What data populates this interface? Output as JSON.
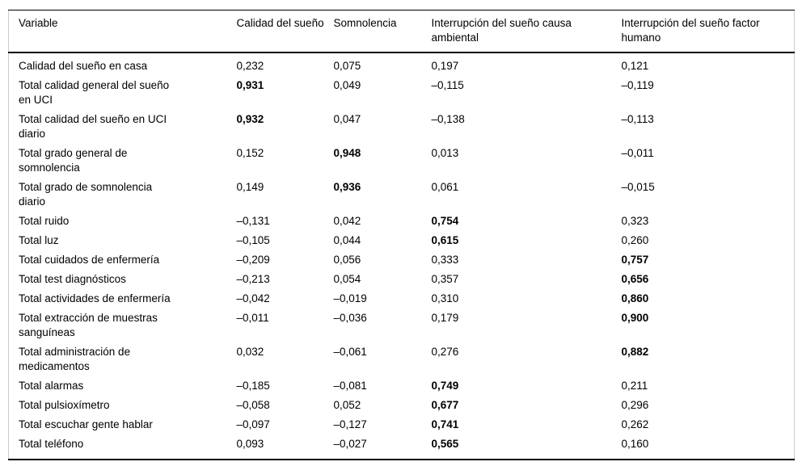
{
  "colors": {
    "text": "#000000",
    "background": "#ffffff",
    "rule_strong": "#000000",
    "rule_light": "#cccccc"
  },
  "table": {
    "headers": [
      "Variable",
      "Calidad del sueño",
      "Somnolencia",
      "Interrupción del sueño causa ambiental",
      "Interrupción del sueño factor humano"
    ],
    "rows": [
      {
        "variable": [
          "Calidad del sueño en casa"
        ],
        "values": [
          "0,232",
          "0,075",
          "0,197",
          "0,121"
        ],
        "bold": [
          false,
          false,
          false,
          false
        ]
      },
      {
        "variable": [
          "Total calidad general del sueño",
          "en UCI"
        ],
        "values": [
          "0,931",
          "0,049",
          "–0,115",
          "–0,119"
        ],
        "bold": [
          true,
          false,
          false,
          false
        ]
      },
      {
        "variable": [
          "Total calidad del sueño en UCI",
          "diario"
        ],
        "values": [
          "0,932",
          "0,047",
          "–0,138",
          "–0,113"
        ],
        "bold": [
          true,
          false,
          false,
          false
        ]
      },
      {
        "variable": [
          "Total grado general de",
          "somnolencia"
        ],
        "values": [
          "0,152",
          "0,948",
          "0,013",
          "–0,011"
        ],
        "bold": [
          false,
          true,
          false,
          false
        ]
      },
      {
        "variable": [
          "Total grado de somnolencia",
          "diario"
        ],
        "values": [
          "0,149",
          "0,936",
          "0,061",
          "–0,015"
        ],
        "bold": [
          false,
          true,
          false,
          false
        ]
      },
      {
        "variable": [
          "Total ruido"
        ],
        "values": [
          "–0,131",
          "0,042",
          "0,754",
          "0,323"
        ],
        "bold": [
          false,
          false,
          true,
          false
        ]
      },
      {
        "variable": [
          "Total luz"
        ],
        "values": [
          "–0,105",
          "0,044",
          "0,615",
          "0,260"
        ],
        "bold": [
          false,
          false,
          true,
          false
        ]
      },
      {
        "variable": [
          "Total cuidados de enfermería"
        ],
        "values": [
          "–0,209",
          "0,056",
          "0,333",
          "0,757"
        ],
        "bold": [
          false,
          false,
          false,
          true
        ]
      },
      {
        "variable": [
          "Total test diagnósticos"
        ],
        "values": [
          "–0,213",
          "0,054",
          "0,357",
          "0,656"
        ],
        "bold": [
          false,
          false,
          false,
          true
        ]
      },
      {
        "variable": [
          "Total actividades de enfermería"
        ],
        "values": [
          "–0,042",
          "–0,019",
          "0,310",
          "0,860"
        ],
        "bold": [
          false,
          false,
          false,
          true
        ]
      },
      {
        "variable": [
          "Total extracción de muestras",
          "sanguíneas"
        ],
        "values": [
          "–0,011",
          "–0,036",
          "0,179",
          "0,900"
        ],
        "bold": [
          false,
          false,
          false,
          true
        ]
      },
      {
        "variable": [
          "Total administración de",
          "medicamentos"
        ],
        "values": [
          "0,032",
          "–0,061",
          "0,276",
          "0,882"
        ],
        "bold": [
          false,
          false,
          false,
          true
        ]
      },
      {
        "variable": [
          "Total alarmas"
        ],
        "values": [
          "–0,185",
          "–0,081",
          "0,749",
          "0,211"
        ],
        "bold": [
          false,
          false,
          true,
          false
        ]
      },
      {
        "variable": [
          "Total pulsioxímetro"
        ],
        "values": [
          "–0,058",
          "0,052",
          "0,677",
          "0,296"
        ],
        "bold": [
          false,
          false,
          true,
          false
        ]
      },
      {
        "variable": [
          "Total escuchar gente hablar"
        ],
        "values": [
          "–0,097",
          "–0,127",
          "0,741",
          "0,262"
        ],
        "bold": [
          false,
          false,
          true,
          false
        ]
      },
      {
        "variable": [
          "Total teléfono"
        ],
        "values": [
          "0,093",
          "–0,027",
          "0,565",
          "0,160"
        ],
        "bold": [
          false,
          false,
          true,
          false
        ]
      }
    ]
  }
}
